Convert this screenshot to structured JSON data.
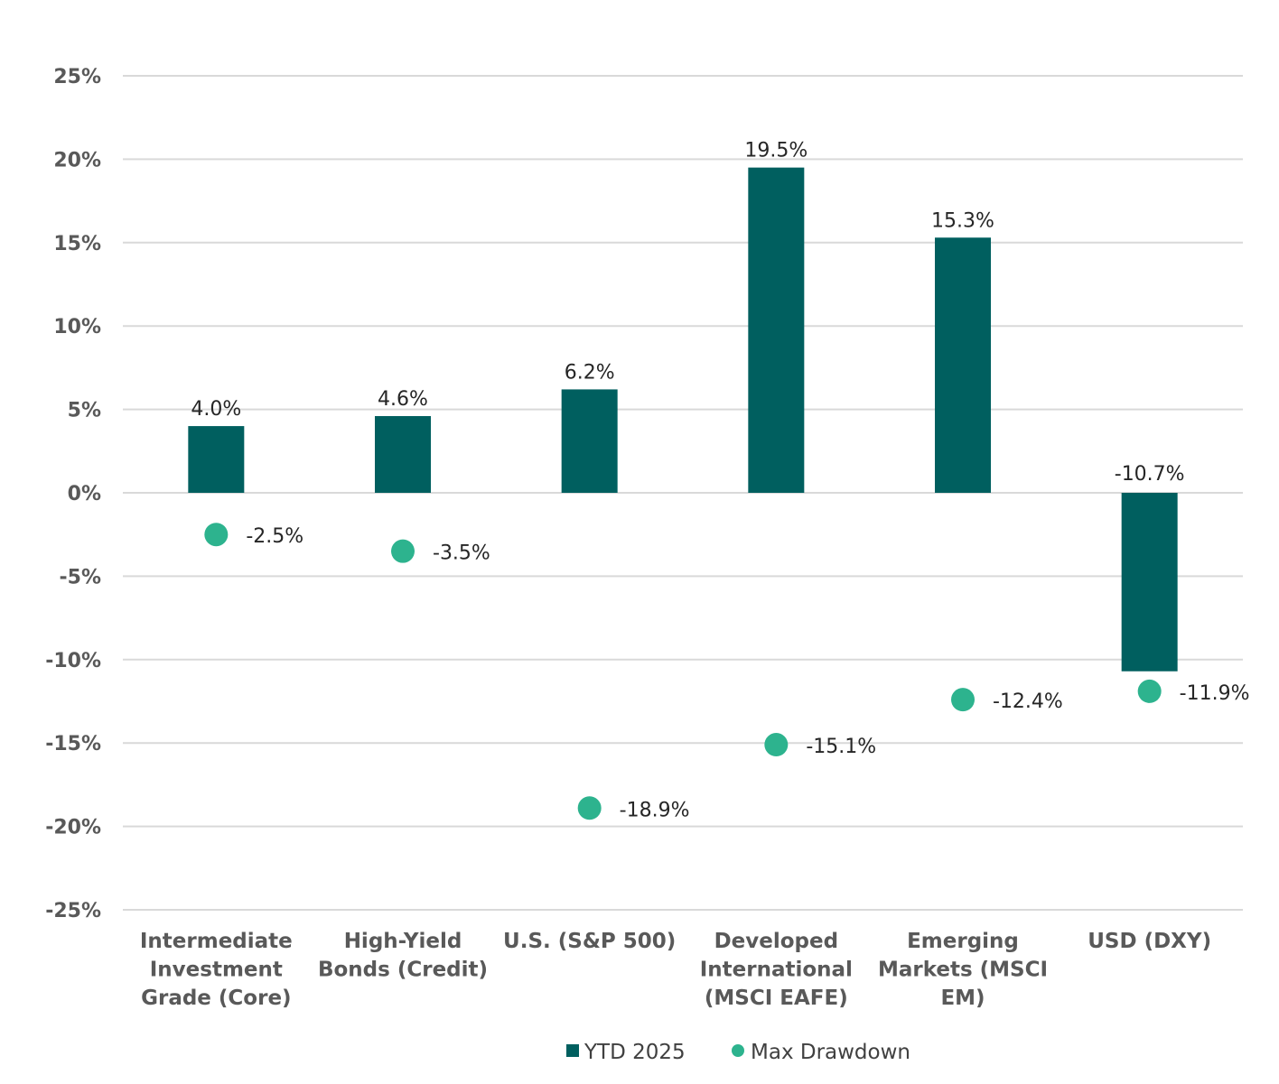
{
  "chart_data": {
    "type": "bar",
    "title": "",
    "xlabel": "",
    "ylabel": "",
    "ylim": [
      -25,
      25
    ],
    "yticks": [
      25,
      20,
      15,
      10,
      5,
      0,
      -5,
      -10,
      -15,
      -20,
      -25
    ],
    "ytick_labels": [
      "25%",
      "20%",
      "15%",
      "10%",
      "5%",
      "0%",
      "-5%",
      "-10%",
      "-15%",
      "-20%",
      "-25%"
    ],
    "grid": true,
    "legend_position": "bottom",
    "categories": [
      [
        "Intermediate",
        "Investment",
        "Grade (Core)"
      ],
      [
        "High-Yield",
        "Bonds (Credit)"
      ],
      [
        "U.S. (S&P 500)"
      ],
      [
        "Developed",
        "International",
        "(MSCI EAFE)"
      ],
      [
        "Emerging",
        "Markets (MSCI",
        "EM)"
      ],
      [
        "USD (DXY)"
      ]
    ],
    "series": [
      {
        "name": "YTD 2025",
        "kind": "bar",
        "color": "#005F5F",
        "values": [
          4.0,
          4.6,
          6.2,
          19.5,
          15.3,
          -10.7
        ],
        "labels": [
          "4.0%",
          "4.6%",
          "6.2%",
          "19.5%",
          "15.3%",
          "-10.7%"
        ]
      },
      {
        "name": "Max Drawdown",
        "kind": "marker",
        "color": "#2DB38E",
        "values": [
          -2.5,
          -3.5,
          -18.9,
          -15.1,
          -12.4,
          -11.9
        ],
        "labels": [
          "-2.5%",
          "-3.5%",
          "-18.9%",
          "-15.1%",
          "-12.4%",
          "-11.9%"
        ]
      }
    ]
  }
}
